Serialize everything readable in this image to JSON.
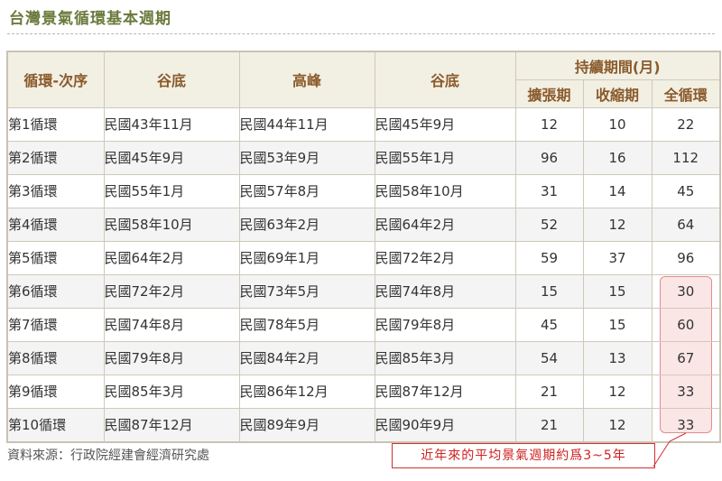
{
  "title": "台灣景氣循環基本週期",
  "table": {
    "headers": {
      "cycle": "循環-次序",
      "trough1": "谷底",
      "peak": "高峰",
      "trough2": "谷底",
      "duration": "持續期間(月)",
      "expansion": "擴張期",
      "contraction": "收縮期",
      "full": "全循環"
    },
    "rows": [
      {
        "cycle": "第1循環",
        "trough1": "民國43年11月",
        "peak": "民國44年11月",
        "trough2": "民國45年9月",
        "expansion": "12",
        "contraction": "10",
        "full": "22"
      },
      {
        "cycle": "第2循環",
        "trough1": "民國45年9月",
        "peak": "民國53年9月",
        "trough2": "民國55年1月",
        "expansion": "96",
        "contraction": "16",
        "full": "112"
      },
      {
        "cycle": "第3循環",
        "trough1": "民國55年1月",
        "peak": "民國57年8月",
        "trough2": "民國58年10月",
        "expansion": "31",
        "contraction": "14",
        "full": "45"
      },
      {
        "cycle": "第4循環",
        "trough1": "民國58年10月",
        "peak": "民國63年2月",
        "trough2": "民國64年2月",
        "expansion": "52",
        "contraction": "12",
        "full": "64"
      },
      {
        "cycle": "第5循環",
        "trough1": "民國64年2月",
        "peak": "民國69年1月",
        "trough2": "民國72年2月",
        "expansion": "59",
        "contraction": "37",
        "full": "96"
      },
      {
        "cycle": "第6循環",
        "trough1": "民國72年2月",
        "peak": "民國73年5月",
        "trough2": "民國74年8月",
        "expansion": "15",
        "contraction": "15",
        "full": "30"
      },
      {
        "cycle": "第7循環",
        "trough1": "民國74年8月",
        "peak": "民國78年5月",
        "trough2": "民國79年8月",
        "expansion": "45",
        "contraction": "15",
        "full": "60"
      },
      {
        "cycle": "第8循環",
        "trough1": "民國79年8月",
        "peak": "民國84年2月",
        "trough2": "民國85年3月",
        "expansion": "54",
        "contraction": "13",
        "full": "67"
      },
      {
        "cycle": "第9循環",
        "trough1": "民國85年3月",
        "peak": "民國86年12月",
        "trough2": "民國87年12月",
        "expansion": "21",
        "contraction": "12",
        "full": "33"
      },
      {
        "cycle": "第10循環",
        "trough1": "民國87年12月",
        "peak": "民國89年9月",
        "trough2": "民國90年9月",
        "expansion": "21",
        "contraction": "12",
        "full": "33"
      }
    ]
  },
  "source": "資料來源：行政院經建會經濟研究處",
  "callout": "近年來的平均景氣週期約爲3~5年",
  "colors": {
    "title": "#6b7a3c",
    "header_text": "#8a5a2a",
    "highlight": "#fbe6e6",
    "callout": "#d02020"
  }
}
